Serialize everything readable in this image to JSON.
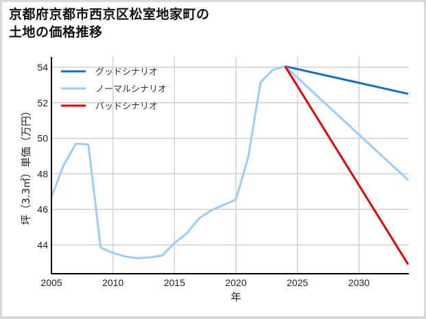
{
  "title_line1": "京都府京都市西京区松室地家町の",
  "title_line2": "土地の価格推移",
  "chart_data": {
    "type": "line",
    "title": "京都府京都市西京区松室地家町の土地の価格推移",
    "xlabel": "年",
    "ylabel": "坪（3.3㎡）単価（万円）",
    "xlim": [
      2005,
      2034
    ],
    "ylim": [
      42.5,
      54.6
    ],
    "xticks": [
      2005,
      2010,
      2015,
      2020,
      2025,
      2030
    ],
    "yticks": [
      44,
      46,
      48,
      50,
      52,
      54
    ],
    "grid": true,
    "legend_position": "upper left",
    "series": [
      {
        "name": "グッドシナリオ",
        "color": "#0a72c8",
        "x": [
          2024,
          2034
        ],
        "values": [
          54.05,
          52.5
        ]
      },
      {
        "name": "ノーマルシナリオ",
        "color": "#99ccff",
        "x": [
          2005,
          2006,
          2007,
          2008,
          2009,
          2010,
          2011,
          2012,
          2013,
          2014,
          2015,
          2016,
          2017,
          2018,
          2019,
          2020,
          2021,
          2022,
          2023,
          2024,
          2034
        ],
        "values": [
          46.7,
          48.5,
          49.7,
          49.65,
          43.85,
          43.55,
          43.35,
          43.25,
          43.3,
          43.4,
          44.1,
          44.65,
          45.5,
          45.95,
          46.25,
          46.55,
          48.95,
          53.15,
          53.85,
          54.05,
          47.65
        ]
      },
      {
        "name": "バッドシナリオ",
        "color": "#ee0000",
        "x": [
          2024,
          2034
        ],
        "values": [
          54.05,
          42.9
        ]
      }
    ]
  }
}
